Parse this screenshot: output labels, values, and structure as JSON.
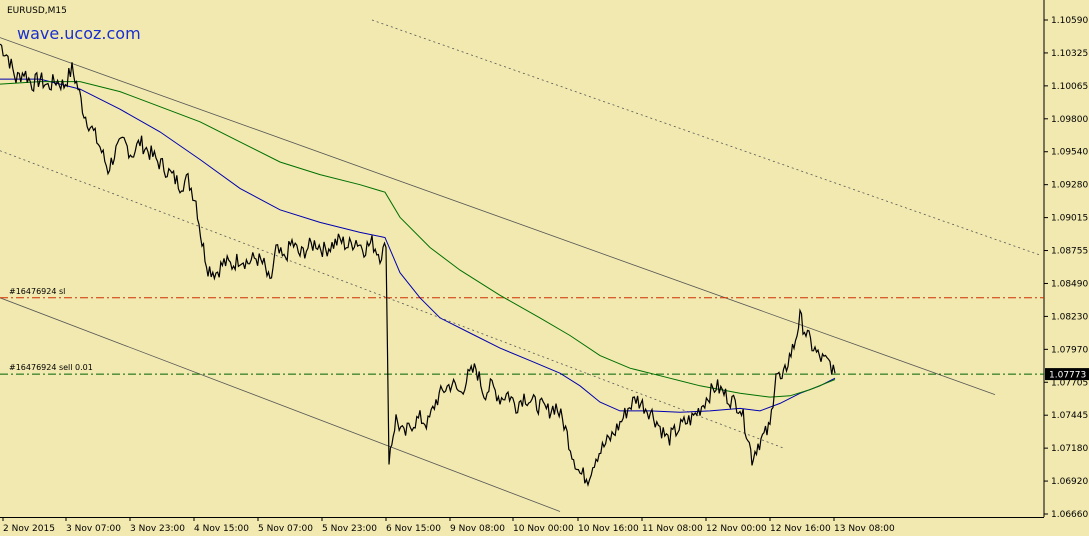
{
  "chart_data": {
    "type": "line",
    "title": "EURUSD,M15",
    "watermark": "wave.ucoz.com",
    "y_axis": {
      "ticks": [
        "1.10590",
        "1.10325",
        "1.10065",
        "1.09800",
        "1.09540",
        "1.09280",
        "1.09015",
        "1.08755",
        "1.08490",
        "1.08230",
        "1.07970",
        "1.07705",
        "1.07445",
        "1.07180",
        "1.06920",
        "1.06660"
      ],
      "ylim": [
        1.0666,
        1.1059
      ],
      "side": "right"
    },
    "x_axis": {
      "ticks": [
        "2 Nov 2015",
        "3 Nov 07:00",
        "3 Nov 23:00",
        "4 Nov 15:00",
        "5 Nov 07:00",
        "5 Nov 23:00",
        "6 Nov 15:00",
        "9 Nov 08:00",
        "10 Nov 00:00",
        "10 Nov 16:00",
        "11 Nov 08:00",
        "12 Nov 00:00",
        "12 Nov 16:00",
        "13 Nov 08:00"
      ]
    },
    "current_price": {
      "label": "1.07773",
      "value": 1.07773,
      "color": "#000000"
    },
    "price_series_points": [
      [
        0,
        1.104
      ],
      [
        8,
        1.103
      ],
      [
        16,
        1.1012
      ],
      [
        24,
        1.1018
      ],
      [
        32,
        1.1008
      ],
      [
        40,
        1.1012
      ],
      [
        48,
        1.1006
      ],
      [
        56,
        1.1011
      ],
      [
        64,
        1.1007
      ],
      [
        72,
        1.102
      ],
      [
        78,
        1.1005
      ],
      [
        84,
        1.0985
      ],
      [
        92,
        1.0972
      ],
      [
        100,
        1.0958
      ],
      [
        108,
        1.094
      ],
      [
        116,
        1.0955
      ],
      [
        124,
        1.0962
      ],
      [
        132,
        1.0952
      ],
      [
        140,
        1.0962
      ],
      [
        148,
        1.0955
      ],
      [
        156,
        1.0948
      ],
      [
        164,
        1.0942
      ],
      [
        172,
        1.0935
      ],
      [
        180,
        1.0928
      ],
      [
        188,
        1.0932
      ],
      [
        196,
        1.0915
      ],
      [
        202,
        1.0882
      ],
      [
        208,
        1.0862
      ],
      [
        216,
        1.0858
      ],
      [
        224,
        1.0866
      ],
      [
        232,
        1.0864
      ],
      [
        240,
        1.087
      ],
      [
        248,
        1.0866
      ],
      [
        256,
        1.087
      ],
      [
        264,
        1.0864
      ],
      [
        270,
        1.0848
      ],
      [
        276,
        1.0876
      ],
      [
        284,
        1.0868
      ],
      [
        292,
        1.0882
      ],
      [
        300,
        1.0872
      ],
      [
        308,
        1.0878
      ],
      [
        316,
        1.0882
      ],
      [
        324,
        1.0876
      ],
      [
        332,
        1.088
      ],
      [
        340,
        1.0884
      ],
      [
        348,
        1.0879
      ],
      [
        356,
        1.0884
      ],
      [
        364,
        1.0877
      ],
      [
        372,
        1.0882
      ],
      [
        380,
        1.0872
      ],
      [
        386,
        1.0878
      ],
      [
        389,
        1.0712
      ],
      [
        396,
        1.0742
      ],
      [
        404,
        1.0728
      ],
      [
        412,
        1.0738
      ],
      [
        420,
        1.0742
      ],
      [
        428,
        1.0738
      ],
      [
        436,
        1.0756
      ],
      [
        444,
        1.0765
      ],
      [
        452,
        1.077
      ],
      [
        460,
        1.0762
      ],
      [
        468,
        1.0775
      ],
      [
        476,
        1.0782
      ],
      [
        484,
        1.0762
      ],
      [
        492,
        1.0768
      ],
      [
        500,
        1.0758
      ],
      [
        508,
        1.0762
      ],
      [
        516,
        1.0752
      ],
      [
        524,
        1.076
      ],
      [
        532,
        1.0755
      ],
      [
        540,
        1.0752
      ],
      [
        548,
        1.0748
      ],
      [
        556,
        1.0752
      ],
      [
        564,
        1.0738
      ],
      [
        572,
        1.0715
      ],
      [
        580,
        1.0698
      ],
      [
        588,
        1.0695
      ],
      [
        596,
        1.0712
      ],
      [
        604,
        1.072
      ],
      [
        612,
        1.0728
      ],
      [
        620,
        1.0738
      ],
      [
        628,
        1.075
      ],
      [
        636,
        1.0758
      ],
      [
        644,
        1.0752
      ],
      [
        652,
        1.0746
      ],
      [
        660,
        1.0735
      ],
      [
        668,
        1.0725
      ],
      [
        676,
        1.0732
      ],
      [
        684,
        1.0738
      ],
      [
        692,
        1.0742
      ],
      [
        700,
        1.075
      ],
      [
        708,
        1.076
      ],
      [
        716,
        1.0768
      ],
      [
        724,
        1.0762
      ],
      [
        732,
        1.0756
      ],
      [
        740,
        1.0752
      ],
      [
        748,
        1.0728
      ],
      [
        752,
        1.071
      ],
      [
        758,
        1.0722
      ],
      [
        764,
        1.0728
      ],
      [
        770,
        1.0735
      ],
      [
        776,
        1.078
      ],
      [
        782,
        1.077
      ],
      [
        788,
        1.0788
      ],
      [
        794,
        1.08
      ],
      [
        800,
        1.0822
      ],
      [
        806,
        1.081
      ],
      [
        812,
        1.08
      ],
      [
        818,
        1.0792
      ],
      [
        824,
        1.0788
      ],
      [
        830,
        1.0786
      ],
      [
        835,
        1.0778
      ]
    ],
    "series": [
      {
        "color": "#0000b0",
        "values": [
          [
            0,
            1.1012
          ],
          [
            40,
            1.1012
          ],
          [
            80,
            1.1004
          ],
          [
            120,
            1.0988
          ],
          [
            160,
            1.097
          ],
          [
            200,
            1.0948
          ],
          [
            240,
            1.0925
          ],
          [
            280,
            1.0908
          ],
          [
            320,
            1.0898
          ],
          [
            360,
            1.089
          ],
          [
            385,
            1.0886
          ],
          [
            400,
            1.0858
          ],
          [
            420,
            1.0838
          ],
          [
            440,
            1.0822
          ],
          [
            470,
            1.081
          ],
          [
            500,
            1.0798
          ],
          [
            530,
            1.0788
          ],
          [
            560,
            1.0778
          ],
          [
            580,
            1.0768
          ],
          [
            600,
            1.0755
          ],
          [
            620,
            1.0748
          ],
          [
            650,
            1.0748
          ],
          [
            680,
            1.0747
          ],
          [
            710,
            1.0748
          ],
          [
            740,
            1.075
          ],
          [
            760,
            1.0748
          ],
          [
            780,
            1.0754
          ],
          [
            800,
            1.0762
          ],
          [
            820,
            1.0768
          ],
          [
            835,
            1.0774
          ]
        ]
      },
      {
        "color": "#007000",
        "values": [
          [
            0,
            1.1008
          ],
          [
            40,
            1.101
          ],
          [
            80,
            1.101
          ],
          [
            120,
            1.1002
          ],
          [
            160,
            1.099
          ],
          [
            200,
            1.0978
          ],
          [
            240,
            1.0962
          ],
          [
            280,
            1.0946
          ],
          [
            320,
            1.0936
          ],
          [
            360,
            1.0928
          ],
          [
            385,
            1.0922
          ],
          [
            400,
            1.0902
          ],
          [
            430,
            1.0878
          ],
          [
            460,
            1.086
          ],
          [
            500,
            1.084
          ],
          [
            540,
            1.0822
          ],
          [
            570,
            1.0808
          ],
          [
            600,
            1.0792
          ],
          [
            630,
            1.0782
          ],
          [
            660,
            1.0776
          ],
          [
            700,
            1.0768
          ],
          [
            740,
            1.0762
          ],
          [
            770,
            1.0759
          ],
          [
            790,
            1.076
          ],
          [
            810,
            1.0765
          ],
          [
            835,
            1.0773
          ]
        ]
      }
    ],
    "orders": [
      {
        "label": "#16476924 sl",
        "value": 1.0838,
        "color": "#d03000"
      },
      {
        "label": "#16476924 sell 0.01",
        "value": 1.07773,
        "color": "#006000"
      }
    ],
    "channel_lines": [
      {
        "style": "solid",
        "color": "#555555",
        "from": [
          0,
          1.1045
        ],
        "to": [
          995,
          1.0761
        ]
      },
      {
        "style": "solid",
        "color": "#555555",
        "from": [
          0,
          1.0838
        ],
        "to": [
          560,
          1.0668
        ]
      },
      {
        "style": "dotted",
        "color": "#555555",
        "from": [
          0,
          1.0955
        ],
        "to": [
          785,
          1.0718
        ]
      },
      {
        "style": "dotted",
        "color": "#555555",
        "from": [
          372,
          1.1059
        ],
        "to": [
          1040,
          1.0872
        ]
      }
    ]
  }
}
